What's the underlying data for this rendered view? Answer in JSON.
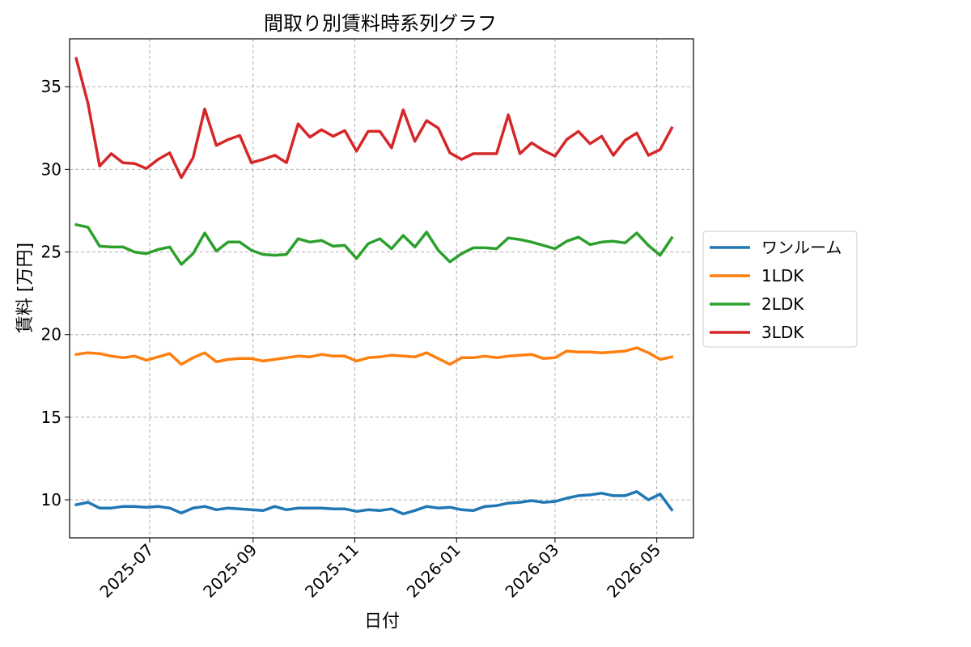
{
  "chart_data": {
    "type": "line",
    "title": "間取り別賃料時系列グラフ",
    "xlabel": "日付",
    "ylabel": "賃料 [万円]",
    "x_type": "date",
    "x": [
      "2025-05-18",
      "2025-05-25",
      "2025-06-01",
      "2025-06-08",
      "2025-06-15",
      "2025-06-22",
      "2025-06-29",
      "2025-07-06",
      "2025-07-13",
      "2025-07-20",
      "2025-07-27",
      "2025-08-03",
      "2025-08-10",
      "2025-08-17",
      "2025-08-24",
      "2025-08-31",
      "2025-09-07",
      "2025-09-14",
      "2025-09-21",
      "2025-09-28",
      "2025-10-05",
      "2025-10-12",
      "2025-10-19",
      "2025-10-26",
      "2025-11-02",
      "2025-11-09",
      "2025-11-16",
      "2025-11-23",
      "2025-11-30",
      "2025-12-07",
      "2025-12-14",
      "2025-12-21",
      "2025-12-28",
      "2026-01-04",
      "2026-01-11",
      "2026-01-18",
      "2026-01-25",
      "2026-02-01",
      "2026-02-08",
      "2026-02-15",
      "2026-02-22",
      "2026-03-01",
      "2026-03-08",
      "2026-03-15",
      "2026-03-22",
      "2026-03-29",
      "2026-04-05",
      "2026-04-12",
      "2026-04-19",
      "2026-04-26",
      "2026-05-03",
      "2026-05-10"
    ],
    "xticks": [
      "2025-07",
      "2025-09",
      "2025-11",
      "2026-01",
      "2026-03",
      "2026-05"
    ],
    "xlim": [
      "2025-05-14",
      "2026-05-23"
    ],
    "yticks": [
      10,
      15,
      20,
      25,
      30,
      35
    ],
    "ylim": [
      7.7,
      37.9
    ],
    "grid": true,
    "legend_position": "center-right-outside",
    "series": [
      {
        "name": "ワンルーム",
        "color": "#1f77b4",
        "values": [
          9.7,
          9.85,
          9.5,
          9.5,
          9.6,
          9.6,
          9.55,
          9.6,
          9.5,
          9.2,
          9.5,
          9.6,
          9.4,
          9.5,
          9.45,
          9.4,
          9.35,
          9.6,
          9.4,
          9.5,
          9.5,
          9.5,
          9.45,
          9.45,
          9.3,
          9.4,
          9.35,
          9.45,
          9.15,
          9.35,
          9.6,
          9.5,
          9.55,
          9.4,
          9.35,
          9.6,
          9.65,
          9.8,
          9.85,
          9.95,
          9.85,
          9.9,
          10.1,
          10.25,
          10.3,
          10.4,
          10.25,
          10.25,
          10.5,
          10.0,
          10.35,
          9.4
        ]
      },
      {
        "name": "1LDK",
        "color": "#ff7f0e",
        "values": [
          18.8,
          18.9,
          18.85,
          18.7,
          18.6,
          18.7,
          18.45,
          18.65,
          18.85,
          18.2,
          18.6,
          18.9,
          18.35,
          18.5,
          18.55,
          18.55,
          18.4,
          18.5,
          18.6,
          18.7,
          18.65,
          18.8,
          18.7,
          18.7,
          18.4,
          18.6,
          18.65,
          18.75,
          18.7,
          18.65,
          18.9,
          18.55,
          18.2,
          18.6,
          18.6,
          18.7,
          18.6,
          18.7,
          18.75,
          18.8,
          18.55,
          18.6,
          19.0,
          18.95,
          18.95,
          18.9,
          18.95,
          19.0,
          19.2,
          18.9,
          18.5,
          18.65
        ]
      },
      {
        "name": "2LDK",
        "color": "#2ca02c",
        "values": [
          26.65,
          26.5,
          25.35,
          25.3,
          25.3,
          25.0,
          24.9,
          25.15,
          25.3,
          24.25,
          24.9,
          26.15,
          25.05,
          25.6,
          25.6,
          25.1,
          24.85,
          24.8,
          24.85,
          25.8,
          25.6,
          25.7,
          25.35,
          25.4,
          24.6,
          25.5,
          25.8,
          25.2,
          26.0,
          25.3,
          26.2,
          25.1,
          24.4,
          24.9,
          25.25,
          25.25,
          25.2,
          25.85,
          25.75,
          25.6,
          25.4,
          25.2,
          25.65,
          25.9,
          25.45,
          25.6,
          25.65,
          25.55,
          26.15,
          25.4,
          24.8,
          25.85
        ]
      },
      {
        "name": "3LDK",
        "color": "#d62728",
        "values": [
          36.7,
          34.0,
          30.2,
          30.95,
          30.4,
          30.35,
          30.05,
          30.6,
          31.0,
          29.5,
          30.7,
          33.65,
          31.45,
          31.8,
          32.05,
          30.4,
          30.6,
          30.85,
          30.4,
          32.75,
          31.95,
          32.4,
          32.0,
          32.35,
          31.1,
          32.3,
          32.3,
          31.3,
          33.6,
          31.7,
          32.95,
          32.5,
          31.0,
          30.6,
          30.95,
          30.95,
          30.95,
          33.3,
          30.95,
          31.6,
          31.15,
          30.8,
          31.8,
          32.3,
          31.55,
          32.0,
          30.85,
          31.75,
          32.2,
          30.85,
          31.2,
          32.5
        ]
      }
    ]
  }
}
